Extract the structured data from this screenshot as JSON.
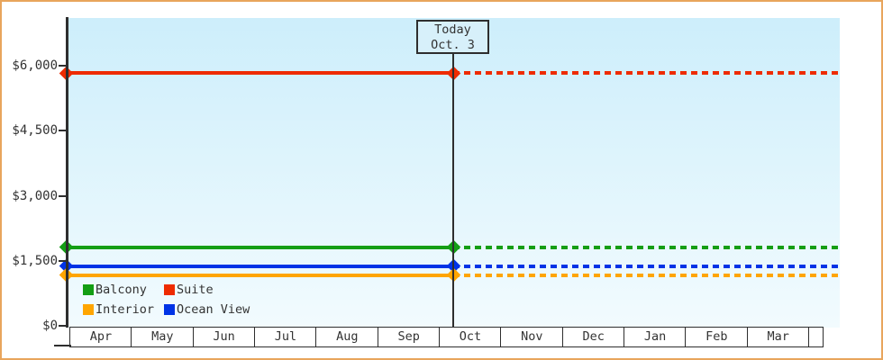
{
  "chart_data": {
    "type": "line",
    "title": "",
    "description": "Cabin price history chart: flat price lines per cabin category, solid up to today (Oct. 3), dashed projection afterwards",
    "x_categories": [
      "Apr",
      "May",
      "Jun",
      "Jul",
      "Aug",
      "Sep",
      "Oct",
      "Nov",
      "Dec",
      "Jan",
      "Feb",
      "Mar"
    ],
    "y_ticks": [
      {
        "value": 0,
        "label": "$0"
      },
      {
        "value": 1500,
        "label": "$1,500"
      },
      {
        "value": 3000,
        "label": "$3,000"
      },
      {
        "value": 4500,
        "label": "$4,500"
      },
      {
        "value": 6000,
        "label": "$6,000"
      }
    ],
    "ylim": [
      0,
      7100
    ],
    "grid": false,
    "legend_position": "bottom-left-inside",
    "series": [
      {
        "name": "Suite",
        "color": "#ee2b00",
        "value": 5825,
        "line_before_today": "solid",
        "line_after_today": "dashed"
      },
      {
        "name": "Balcony",
        "color": "#149e14",
        "value": 1815,
        "line_before_today": "solid",
        "line_after_today": "dashed"
      },
      {
        "name": "Ocean View",
        "color": "#0033e6",
        "value": 1380,
        "line_before_today": "solid",
        "line_after_today": "dashed"
      },
      {
        "name": "Interior",
        "color": "#ffa500",
        "value": 1165,
        "line_before_today": "solid",
        "line_after_today": "dashed"
      }
    ],
    "today_marker": {
      "line1": "Today",
      "line2": "Oct. 3"
    }
  },
  "legend": {
    "items": [
      {
        "label": "Balcony",
        "color": "#149e14"
      },
      {
        "label": "Suite",
        "color": "#ee2b00"
      },
      {
        "label": "Interior",
        "color": "#ffa500"
      },
      {
        "label": "Ocean View",
        "color": "#0033e6"
      }
    ]
  },
  "colors": {
    "frame_border": "#e8a55c",
    "plot_bg_top": "#cdeefb",
    "plot_bg_bottom": "#f2fbfe",
    "axis": "#2e2e2e",
    "text": "#333333",
    "today_box_bg": "#d7f0fa",
    "month_cell_bg": "#ffffff"
  }
}
